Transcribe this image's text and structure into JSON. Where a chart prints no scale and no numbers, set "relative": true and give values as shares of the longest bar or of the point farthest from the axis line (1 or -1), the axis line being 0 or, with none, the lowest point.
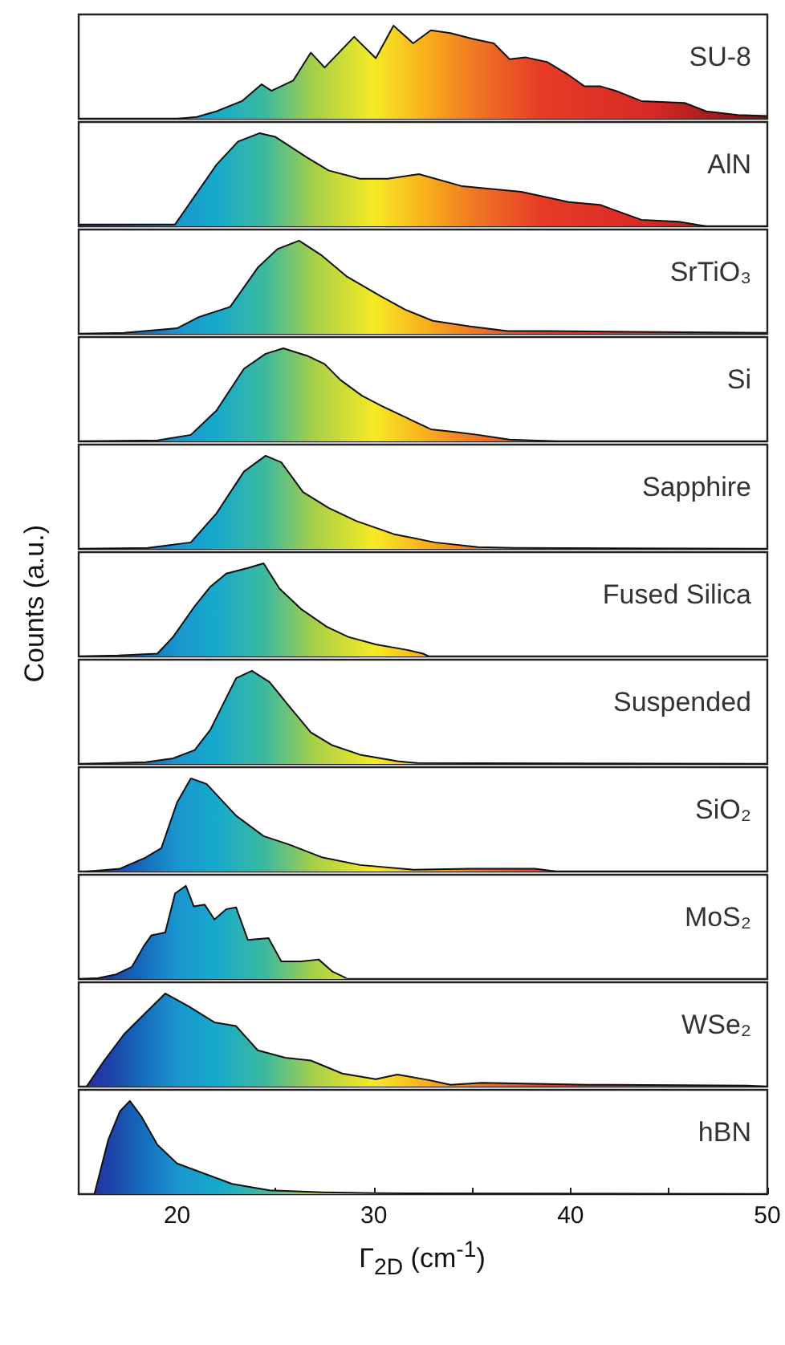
{
  "chart_data": [
    {
      "type": "area",
      "relative": true,
      "xlim": [
        15,
        50
      ],
      "tick_labels": false,
      "x": [
        15,
        20,
        21,
        22,
        23.3,
        24.3,
        24.8,
        25.9,
        26.8,
        27.5,
        29.0,
        30.1,
        31.0,
        32.0,
        32.9,
        33.9,
        35.0,
        36.1,
        36.9,
        37.7,
        38.8,
        39.9,
        40.7,
        41.5,
        42.3,
        43.6,
        45.8,
        46.9,
        48.5,
        50
      ],
      "series": [
        {
          "name": "SU-8",
          "color": "#111111",
          "values": [
            0,
            0,
            0.02,
            0.08,
            0.19,
            0.37,
            0.3,
            0.41,
            0.71,
            0.55,
            0.88,
            0.65,
            1.0,
            0.81,
            0.95,
            0.92,
            0.86,
            0.81,
            0.64,
            0.66,
            0.61,
            0.47,
            0.35,
            0.35,
            0.3,
            0.19,
            0.17,
            0.08,
            0.04,
            0.03
          ]
        }
      ]
    },
    {
      "type": "area",
      "relative": true,
      "xlim": [
        15,
        50
      ],
      "tick_labels": false,
      "x": [
        15,
        19.9,
        22.0,
        23.1,
        24.2,
        25.0,
        26.6,
        27.7,
        29.3,
        30.7,
        32.3,
        34.5,
        37.5,
        39.9,
        41.5,
        43.6,
        45.5,
        46.9,
        50
      ],
      "series": [
        {
          "name": "AlN",
          "color": "#111111",
          "values": [
            0.02,
            0.02,
            0.66,
            0.91,
            1.0,
            0.96,
            0.74,
            0.6,
            0.51,
            0.51,
            0.56,
            0.43,
            0.37,
            0.26,
            0.23,
            0.07,
            0.05,
            0,
            0
          ]
        }
      ]
    },
    {
      "type": "area",
      "relative": true,
      "xlim": [
        15,
        50
      ],
      "tick_labels": false,
      "x": [
        15,
        17.3,
        20.0,
        21.1,
        22.7,
        24.1,
        25.1,
        26.2,
        27.3,
        28.6,
        30.3,
        31.6,
        33.0,
        34.9,
        36.8,
        38.9,
        50
      ],
      "series": [
        {
          "name": "SrTiO₃",
          "color": "#111111",
          "values": [
            0,
            0.01,
            0.06,
            0.18,
            0.29,
            0.71,
            0.91,
            1.0,
            0.85,
            0.62,
            0.41,
            0.26,
            0.14,
            0.08,
            0.03,
            0.03,
            0.01
          ]
        }
      ]
    },
    {
      "type": "area",
      "relative": true,
      "xlim": [
        15,
        50
      ],
      "tick_labels": false,
      "x": [
        15,
        19.0,
        20.7,
        22.0,
        23.4,
        24.5,
        25.4,
        26.6,
        27.5,
        28.3,
        29.4,
        30.4,
        31.5,
        32.9,
        34.2,
        35.3,
        36.9,
        39.4,
        50
      ],
      "series": [
        {
          "name": "Si",
          "color": "#111111",
          "values": [
            0,
            0.01,
            0.07,
            0.33,
            0.78,
            0.94,
            1.0,
            0.92,
            0.83,
            0.66,
            0.49,
            0.38,
            0.27,
            0.13,
            0.1,
            0.07,
            0.02,
            0,
            0
          ]
        }
      ]
    },
    {
      "type": "area",
      "relative": true,
      "xlim": [
        15,
        50
      ],
      "tick_labels": false,
      "x": [
        15,
        18.5,
        20.7,
        22.0,
        23.4,
        24.5,
        25.3,
        26.4,
        27.7,
        29.1,
        31.0,
        33.1,
        35.3,
        37.2,
        50
      ],
      "series": [
        {
          "name": "Sapphire",
          "color": "#111111",
          "values": [
            0,
            0.01,
            0.07,
            0.38,
            0.83,
            1.0,
            0.93,
            0.61,
            0.44,
            0.3,
            0.16,
            0.07,
            0.02,
            0.01,
            0
          ]
        }
      ]
    },
    {
      "type": "area",
      "relative": true,
      "xlim": [
        15,
        50
      ],
      "tick_labels": false,
      "ylabel": "Counts (a.u.)",
      "x": [
        15,
        17,
        19.0,
        19.8,
        20.9,
        21.7,
        22.5,
        23.6,
        24.4,
        25.2,
        26.3,
        27.6,
        28.7,
        30.1,
        31.7,
        32.5,
        32.8
      ],
      "series": [
        {
          "name": "Fused Silica",
          "color": "#111111",
          "values": [
            0,
            0.01,
            0.03,
            0.21,
            0.54,
            0.75,
            0.89,
            0.95,
            1.0,
            0.73,
            0.51,
            0.32,
            0.21,
            0.13,
            0.07,
            0.03,
            0
          ]
        }
      ]
    },
    {
      "type": "area",
      "relative": true,
      "xlim": [
        15,
        50
      ],
      "tick_labels": false,
      "x": [
        15,
        18.4,
        19.8,
        20.9,
        21.7,
        22.5,
        23.0,
        23.8,
        24.7,
        25.7,
        26.8,
        27.9,
        29.3,
        31.2,
        32.2,
        50
      ],
      "series": [
        {
          "name": "Suspended",
          "color": "#111111",
          "values": [
            0,
            0.02,
            0.06,
            0.15,
            0.37,
            0.71,
            0.92,
            1.0,
            0.88,
            0.62,
            0.34,
            0.2,
            0.1,
            0.03,
            0.01,
            0
          ]
        }
      ]
    },
    {
      "type": "area",
      "relative": true,
      "xlim": [
        15,
        50
      ],
      "tick_labels": false,
      "x": [
        15.4,
        17.1,
        18.4,
        19.2,
        20.0,
        20.7,
        21.5,
        23.0,
        24.4,
        25.7,
        27.4,
        29.3,
        32.0,
        34.9,
        38.2,
        39.3,
        50
      ],
      "series": [
        {
          "name": "SiO₂",
          "color": "#111111",
          "values": [
            0,
            0.03,
            0.15,
            0.25,
            0.74,
            1.0,
            0.94,
            0.6,
            0.38,
            0.29,
            0.15,
            0.07,
            0.02,
            0.03,
            0.03,
            0,
            0
          ]
        }
      ]
    },
    {
      "type": "area",
      "relative": true,
      "xlim": [
        15,
        50
      ],
      "tick_labels": false,
      "x": [
        15,
        16.0,
        16.9,
        17.7,
        18.3,
        18.7,
        19.4,
        19.9,
        20.45,
        20.85,
        21.4,
        21.9,
        22.5,
        23.0,
        23.6,
        24.65,
        25.3,
        26.3,
        27.2,
        27.9,
        28.6
      ],
      "series": [
        {
          "name": "MoS₂",
          "color": "#111111",
          "values": [
            0,
            0.01,
            0.05,
            0.13,
            0.35,
            0.47,
            0.5,
            0.92,
            1.0,
            0.78,
            0.8,
            0.64,
            0.75,
            0.77,
            0.42,
            0.44,
            0.19,
            0.19,
            0.21,
            0.08,
            0.01
          ]
        }
      ]
    },
    {
      "type": "area",
      "relative": true,
      "xlim": [
        15,
        50
      ],
      "tick_labels": false,
      "x": [
        15.4,
        16.3,
        17.3,
        18.2,
        19.4,
        20.6,
        21.9,
        23.0,
        24.1,
        25.5,
        26.8,
        28.4,
        30.1,
        31.2,
        32.8,
        33.9,
        35.5,
        40.9,
        49.0,
        50
      ],
      "series": [
        {
          "name": "WSe₂",
          "color": "#111111",
          "values": [
            0,
            0.28,
            0.56,
            0.75,
            1.0,
            0.86,
            0.69,
            0.65,
            0.39,
            0.31,
            0.28,
            0.14,
            0.08,
            0.13,
            0.07,
            0.02,
            0.04,
            0.02,
            0.01,
            0
          ]
        }
      ]
    },
    {
      "type": "area",
      "relative": true,
      "xlim": [
        15,
        50
      ],
      "tick_labels": "x",
      "xlabel": "Γ$_{2D}$ (cm$^{-1}$)",
      "xticks": [
        20,
        {
          "value": 25,
          "label": null
        },
        30,
        {
          "value": 35,
          "label": null
        },
        40,
        {
          "value": 45,
          "label": null
        },
        50
      ],
      "x": [
        15.8,
        16.5,
        17.1,
        17.6,
        18.2,
        19.0,
        20.0,
        21.4,
        22.8,
        24.7,
        27.4,
        30.1,
        50
      ],
      "series": [
        {
          "name": "hBN",
          "color": "#111111",
          "values": [
            0,
            0.58,
            0.89,
            1.0,
            0.83,
            0.53,
            0.33,
            0.22,
            0.11,
            0.04,
            0.02,
            0.01,
            0
          ]
        }
      ]
    }
  ]
}
